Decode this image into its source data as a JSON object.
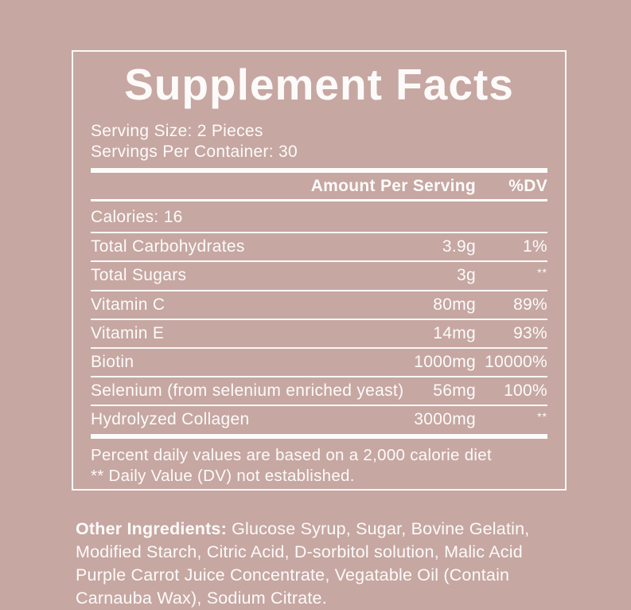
{
  "panel": {
    "title": "Supplement Facts",
    "serving_size": "Serving Size: 2 Pieces",
    "servings_per_container": "Servings Per Container: 30",
    "header": {
      "amount_label": "Amount Per Serving",
      "dv_label": "%DV"
    },
    "calories": "Calories: 16",
    "rows": [
      {
        "name": "Total Carbohydrates",
        "amount": "3.9g",
        "dv": "1%"
      },
      {
        "name": "Total Sugars",
        "amount": "3g",
        "dv": "**"
      },
      {
        "name": "Vitamin C",
        "amount": "80mg",
        "dv": "89%"
      },
      {
        "name": "Vitamin E",
        "amount": "14mg",
        "dv": "93%"
      },
      {
        "name": "Biotin",
        "amount": "1000mg",
        "dv": "10000%"
      },
      {
        "name": "Selenium (from selenium enriched yeast)",
        "amount": "56mg",
        "dv": "100%"
      },
      {
        "name": "Hydrolyzed Collagen",
        "amount": "3000mg",
        "dv": "**"
      }
    ],
    "footnotes": {
      "line1": "Percent daily values are based on a 2,000 calorie diet",
      "line2": "** Daily Value (DV) not established."
    }
  },
  "other_ingredients": {
    "label": "Other Ingredients:",
    "text": " Glucose Syrup, Sugar, Bovine Gelatin, Modified Starch, Citric Acid, D-sorbitol solution, Malic Acid Purple Carrot Juice Concentrate, Vegatable Oil (Contain Carnauba Wax), Sodium Citrate."
  },
  "colors": {
    "background": "#c6a7a2",
    "foreground": "#fdfbfa"
  }
}
